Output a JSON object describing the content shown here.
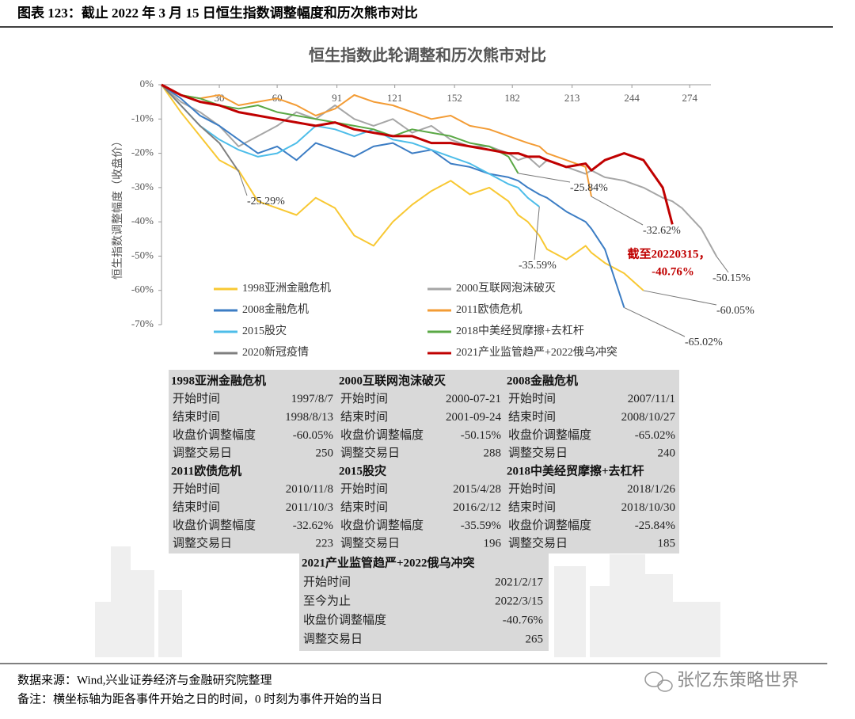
{
  "header": {
    "title": "图表 123：截止 2022 年 3 月 15 日恒生指数调整幅度和历次熊市对比"
  },
  "chart_data": {
    "type": "line",
    "title": "恒生指数此轮调整和历次熊市对比",
    "y_label": "恒生指数调整幅度（收盘价）",
    "x": [
      0,
      10,
      20,
      30,
      40,
      50,
      60,
      70,
      80,
      90,
      100,
      110,
      120,
      130,
      140,
      150,
      160,
      170,
      180,
      185,
      190,
      196,
      200,
      210,
      220,
      223,
      230,
      240,
      250,
      260,
      265,
      270,
      280,
      288
    ],
    "xlim": [
      0,
      285
    ],
    "xticks": [
      30,
      60,
      91,
      121,
      152,
      182,
      213,
      244,
      274
    ],
    "ylim": [
      -70,
      0
    ],
    "yticks": [
      {
        "value": 0,
        "label": "0%"
      },
      {
        "value": -10,
        "label": "-10%"
      },
      {
        "value": -20,
        "label": "-20%"
      },
      {
        "value": -30,
        "label": "-30%"
      },
      {
        "value": -40,
        "label": "-40%"
      },
      {
        "value": -50,
        "label": "-50%"
      },
      {
        "value": -60,
        "label": "-60%"
      },
      {
        "value": -70,
        "label": "-70%"
      }
    ],
    "legend": "bottom",
    "series": [
      {
        "name": "1998亚洲金融危机",
        "color": "#f8c833",
        "values": [
          0,
          -8,
          -15,
          -22,
          -25,
          -34,
          -36,
          -38,
          -33,
          -36,
          -44,
          -47,
          -40,
          -35,
          -31,
          -28,
          -32,
          -30,
          -34,
          -38,
          -40,
          -44,
          -48,
          -51,
          -47,
          -49,
          -52,
          -55,
          -60.05,
          null,
          null,
          null,
          null,
          null
        ],
        "value_labels": [
          null,
          null,
          null,
          null,
          null,
          null,
          null,
          null,
          null,
          null,
          null,
          null,
          null,
          null,
          null,
          null,
          null,
          null,
          null,
          null,
          null,
          null,
          null,
          null,
          null,
          null,
          null,
          null,
          "-60.05%",
          null,
          null,
          null,
          null,
          null
        ]
      },
      {
        "name": "2000互联网泡沫破灭",
        "color": "#a6a6a6",
        "values": [
          0,
          -5,
          -8,
          -12,
          -18,
          -15,
          -12,
          -8,
          -10,
          -6,
          -10,
          -12,
          -10,
          -14,
          -12,
          -16,
          -18,
          -18,
          -20,
          -22,
          -21,
          -24,
          -22,
          -24,
          -26,
          -25,
          -27,
          -28,
          -30,
          -33,
          -34,
          -36,
          -42,
          -50.15
        ],
        "value_labels": [
          null,
          null,
          null,
          null,
          null,
          null,
          null,
          null,
          null,
          null,
          null,
          null,
          null,
          null,
          null,
          null,
          null,
          null,
          null,
          null,
          null,
          null,
          null,
          null,
          null,
          null,
          null,
          null,
          null,
          null,
          null,
          null,
          null,
          "-50.15%"
        ]
      },
      {
        "name": "2008金融危机",
        "color": "#3c7dc4",
        "values": [
          0,
          -4,
          -9,
          -12,
          -16,
          -20,
          -18,
          -22,
          -17,
          -19,
          -21,
          -18,
          -17,
          -20,
          -19,
          -23,
          -24,
          -26,
          -27,
          -28,
          -30,
          -32,
          -33,
          -37,
          -40,
          -42,
          -48,
          -65.02,
          null,
          null,
          null,
          null,
          null,
          null
        ],
        "value_labels": [
          null,
          null,
          null,
          null,
          null,
          null,
          null,
          null,
          null,
          null,
          null,
          null,
          null,
          null,
          null,
          null,
          null,
          null,
          null,
          null,
          null,
          null,
          null,
          null,
          null,
          null,
          null,
          "-65.02%",
          null,
          null,
          null,
          null,
          null,
          null
        ]
      },
      {
        "name": "2011欧债危机",
        "color": "#f39c35",
        "values": [
          0,
          -3,
          -4,
          -3,
          -6,
          -5,
          -4,
          -6,
          -9,
          -7,
          -3,
          -5,
          -6,
          -8,
          -10,
          -9,
          -12,
          -13,
          -15,
          -16,
          -17,
          -18,
          -20,
          -22,
          -24,
          -32.62,
          null,
          null,
          null,
          null,
          null,
          null,
          null,
          null
        ],
        "value_labels": [
          null,
          null,
          null,
          null,
          null,
          null,
          null,
          null,
          null,
          null,
          null,
          null,
          null,
          null,
          null,
          null,
          null,
          null,
          null,
          null,
          null,
          null,
          null,
          null,
          null,
          "-32.62%",
          null,
          null,
          null,
          null,
          null,
          null,
          null,
          null
        ]
      },
      {
        "name": "2015股灾",
        "color": "#4dbde9",
        "values": [
          0,
          -6,
          -12,
          -16,
          -19,
          -21,
          -20,
          -17,
          -12,
          -13,
          -15,
          -13,
          -16,
          -17,
          -19,
          -21,
          -23,
          -26,
          -29,
          -30,
          -33,
          -35.59,
          null,
          null,
          null,
          null,
          null,
          null,
          null,
          null,
          null,
          null,
          null,
          null
        ],
        "value_labels": [
          null,
          null,
          null,
          null,
          null,
          null,
          null,
          null,
          null,
          null,
          null,
          null,
          null,
          null,
          null,
          null,
          null,
          null,
          null,
          null,
          null,
          "-35.59%",
          null,
          null,
          null,
          null,
          null,
          null,
          null,
          null,
          null,
          null,
          null,
          null
        ]
      },
      {
        "name": "2018中美经贸摩擦+去杠杆",
        "color": "#5aa845",
        "values": [
          0,
          -3,
          -4,
          -6,
          -7,
          -6,
          -8,
          -9,
          -10,
          -11,
          -12,
          -13,
          -15,
          -13,
          -14,
          -15,
          -17,
          -18,
          -21,
          -25.84,
          null,
          null,
          null,
          null,
          null,
          null,
          null,
          null,
          null,
          null,
          null,
          null,
          null,
          null
        ],
        "value_labels": [
          null,
          null,
          null,
          null,
          null,
          null,
          null,
          null,
          null,
          null,
          null,
          null,
          null,
          null,
          null,
          null,
          null,
          null,
          null,
          "-25.84%",
          null,
          null,
          null,
          null,
          null,
          null,
          null,
          null,
          null,
          null,
          null,
          null,
          null,
          null
        ]
      },
      {
        "name": "2020新冠疫情",
        "color": "#7f7f7f",
        "values": [
          0,
          -6,
          -12,
          -17,
          -25.29,
          null,
          null,
          null,
          null,
          null,
          null,
          null,
          null,
          null,
          null,
          null,
          null,
          null,
          null,
          null,
          null,
          null,
          null,
          null,
          null,
          null,
          null,
          null,
          null,
          null,
          null,
          null,
          null,
          null
        ],
        "value_labels": [
          null,
          null,
          null,
          null,
          "-25.29%",
          null,
          null,
          null,
          null,
          null,
          null,
          null,
          null,
          null,
          null,
          null,
          null,
          null,
          null,
          null,
          null,
          null,
          null,
          null,
          null,
          null,
          null,
          null,
          null,
          null,
          null,
          null,
          null,
          null
        ]
      },
      {
        "name": "2021产业监管趋严+2022俄乌冲突",
        "color": "#c00000",
        "values": [
          0,
          -3,
          -5,
          -6,
          -8,
          -9,
          -10,
          -11,
          -12,
          -11,
          -13,
          -14,
          -15,
          -15,
          -17,
          -17,
          -18,
          -19,
          -20,
          -20,
          -21,
          -21,
          -22,
          -24,
          -23,
          -25,
          -22,
          -20,
          -22,
          -30,
          -40.76,
          null,
          null,
          null
        ],
        "value_labels": [
          null,
          null,
          null,
          null,
          null,
          null,
          null,
          null,
          null,
          null,
          null,
          null,
          null,
          null,
          null,
          null,
          null,
          null,
          null,
          null,
          null,
          null,
          null,
          null,
          null,
          null,
          null,
          null,
          null,
          null,
          "-40.76%",
          null,
          null,
          null
        ]
      }
    ],
    "annotations": [
      {
        "text": "截至20220315，"
      }
    ]
  },
  "table": {
    "blocks": [
      {
        "title": "1998亚洲金融危机",
        "rows": [
          [
            "开始时间",
            "1997/8/7"
          ],
          [
            "结束时间",
            "1998/8/13"
          ],
          [
            "收盘价调整幅度",
            "-60.05%"
          ],
          [
            "调整交易日",
            "250"
          ]
        ]
      },
      {
        "title": "2000互联网泡沫破灭",
        "rows": [
          [
            "开始时间",
            "2000-07-21"
          ],
          [
            "结束时间",
            "2001-09-24"
          ],
          [
            "收盘价调整幅度",
            "-50.15%"
          ],
          [
            "调整交易日",
            "288"
          ]
        ]
      },
      {
        "title": "2008金融危机",
        "rows": [
          [
            "开始时间",
            "2007/11/1"
          ],
          [
            "结束时间",
            "2008/10/27"
          ],
          [
            "收盘价调整幅度",
            "-65.02%"
          ],
          [
            "调整交易日",
            "240"
          ]
        ]
      },
      {
        "title": "2011欧债危机",
        "rows": [
          [
            "开始时间",
            "2010/11/8"
          ],
          [
            "结束时间",
            "2011/10/3"
          ],
          [
            "收盘价调整幅度",
            "-32.62%"
          ],
          [
            "调整交易日",
            "223"
          ]
        ]
      },
      {
        "title": "2015股灾",
        "rows": [
          [
            "开始时间",
            "2015/4/28"
          ],
          [
            "结束时间",
            "2016/2/12"
          ],
          [
            "收盘价调整幅度",
            "-35.59%"
          ],
          [
            "调整交易日",
            "196"
          ]
        ]
      },
      {
        "title": "2018中美经贸摩擦+去杠杆",
        "rows": [
          [
            "开始时间",
            "2018/1/26"
          ],
          [
            "结束时间",
            "2018/10/30"
          ],
          [
            "收盘价调整幅度",
            "-25.84%"
          ],
          [
            "调整交易日",
            "185"
          ]
        ]
      },
      {
        "title": "2021产业监管趋严+2022俄乌冲突",
        "rows": [
          [
            "开始时间",
            "2021/2/17"
          ],
          [
            "至今为止",
            "2022/3/15"
          ],
          [
            "收盘价调整幅度",
            "-40.76%"
          ],
          [
            "调整交易日",
            "265"
          ]
        ]
      }
    ]
  },
  "footer": {
    "source": "数据来源：Wind,兴业证券经济与金融研究院整理",
    "note": "备注：横坐标轴为距各事件开始之日的时间，0 时刻为事件开始的当日",
    "watermark": "张忆东策略世界"
  }
}
